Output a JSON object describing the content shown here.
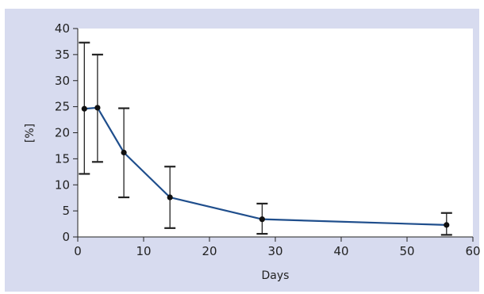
{
  "chart_data": {
    "type": "line",
    "title": "",
    "xlabel": "Days",
    "ylabel": "[%]",
    "xlim": [
      0,
      60
    ],
    "ylim": [
      0,
      40
    ],
    "x_ticks": [
      "0",
      "10",
      "20",
      "30",
      "40",
      "50",
      "60"
    ],
    "y_ticks": [
      "0",
      "5",
      "10",
      "15",
      "20",
      "25",
      "30",
      "35",
      "40"
    ],
    "grid": false,
    "colors": {
      "line": "#1f4e8c",
      "marker": "#111111",
      "error_bar": "#222222",
      "panel_background": "#d7dbef",
      "plot_background": "#ffffff"
    },
    "series": [
      {
        "x": [
          1,
          3,
          7,
          14,
          28,
          56
        ],
        "y": [
          24.6,
          24.8,
          16.2,
          7.6,
          3.4,
          2.3
        ],
        "y_upper": [
          37.3,
          35.0,
          24.7,
          13.5,
          6.4,
          4.6
        ],
        "y_lower": [
          12.1,
          14.4,
          7.6,
          1.7,
          0.6,
          0.4
        ]
      }
    ]
  }
}
